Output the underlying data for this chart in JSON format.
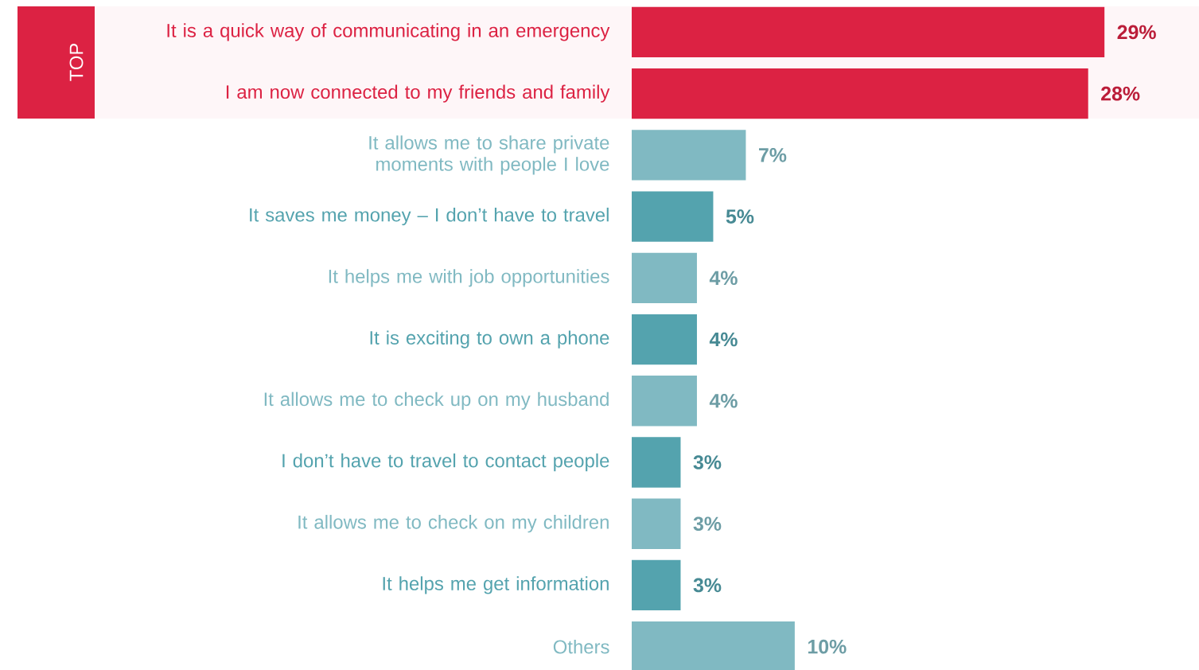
{
  "chart_data": {
    "type": "bar",
    "orientation": "horizontal",
    "categories": [
      "It is a quick way of communicating in an emergency",
      "I am now connected to my friends and family",
      "It allows me to share private moments with people I love",
      "It saves me money – I don’t have to travel",
      "It helps me with job opportunities",
      "It is exciting to own a phone",
      "It allows me to check up on my husband",
      "I don’t have to travel to contact people",
      "It allows me to check on my children",
      "It helps me get information",
      "Others"
    ],
    "values": [
      29,
      28,
      7,
      5,
      4,
      4,
      4,
      3,
      3,
      3,
      10
    ],
    "value_labels": [
      "29%",
      "28%",
      "7%",
      "5%",
      "4%",
      "4%",
      "4%",
      "3%",
      "3%",
      "3%",
      "10%"
    ],
    "colors": [
      "#dc2243",
      "#dc2243",
      "#80b9c2",
      "#54a3ae",
      "#80b9c2",
      "#54a3ae",
      "#80b9c2",
      "#54a3ae",
      "#80b9c2",
      "#54a3ae",
      "#80b9c2"
    ],
    "annotations": [
      "TOP"
    ]
  }
}
